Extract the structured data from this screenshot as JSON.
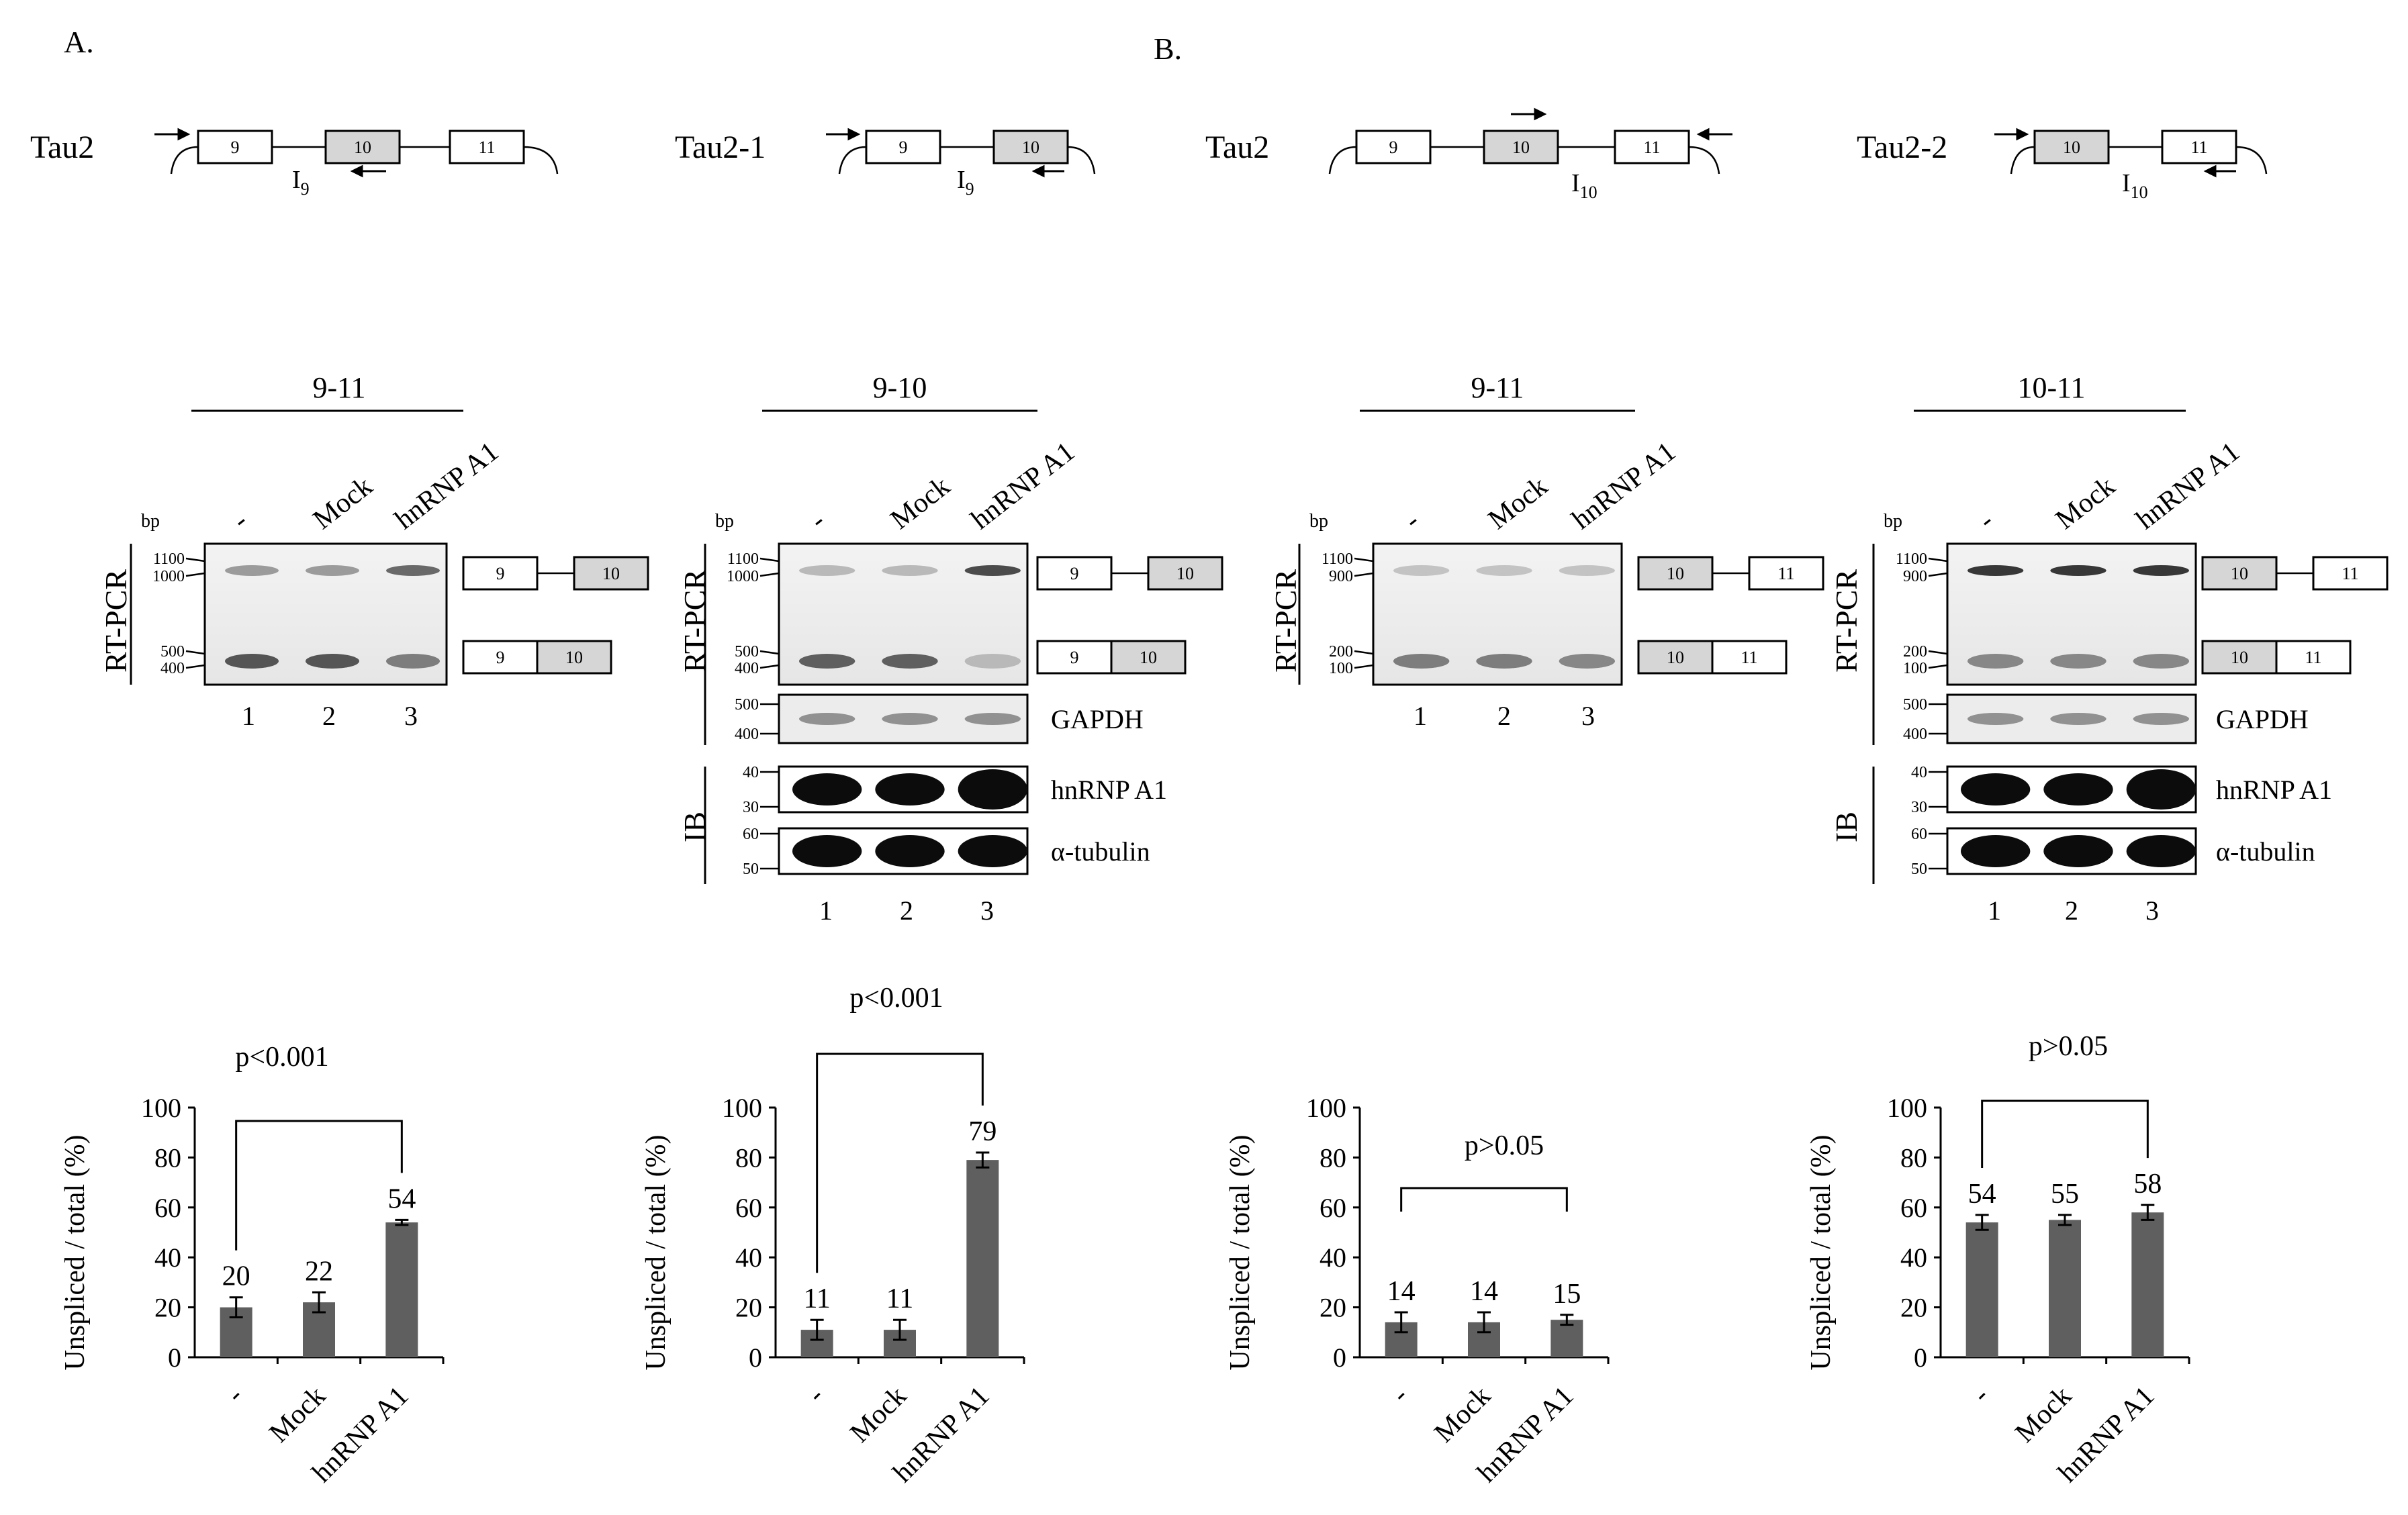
{
  "panels": {
    "A": "A.",
    "B": "B."
  },
  "constructs": [
    {
      "name": "Tau2",
      "exons": [
        "9",
        "10",
        "11"
      ],
      "intron": "I",
      "intron_sub": "9"
    },
    {
      "name": "Tau2-1",
      "exons": [
        "9",
        "10"
      ],
      "intron": "I",
      "intron_sub": "9"
    },
    {
      "name": "Tau2",
      "exons": [
        "9",
        "10",
        "11"
      ],
      "intron": "I",
      "intron_sub": "10"
    },
    {
      "name": "Tau2-2",
      "exons": [
        "10",
        "11"
      ],
      "intron": "I",
      "intron_sub": "10"
    }
  ],
  "blots": [
    {
      "primer_label": "9-11",
      "lanes": [
        "-",
        "Mock",
        "hnRNP A1"
      ],
      "lane_numbers": [
        "1",
        "2",
        "3"
      ],
      "bp": "bp",
      "method": "RT-PCR",
      "markers": [
        "1100",
        "1000",
        "500",
        "400"
      ],
      "product_exons": [
        [
          "9",
          "10"
        ],
        [
          "9",
          "10"
        ]
      ],
      "band_intensity": {
        "unspliced": [
          0.45,
          0.45,
          0.7
        ],
        "spliced": [
          0.8,
          0.8,
          0.6
        ]
      }
    },
    {
      "primer_label": "9-10",
      "lanes": [
        "-",
        "Mock",
        "hnRNP A1"
      ],
      "lane_numbers": [
        "1",
        "2",
        "3"
      ],
      "bp": "bp",
      "method": "RT-PCR",
      "markers": [
        "1100",
        "1000",
        "500",
        "400"
      ],
      "product_exons": [
        [
          "9",
          "10"
        ],
        [
          "9",
          "10"
        ]
      ],
      "gapdh_markers": [
        "500",
        "400"
      ],
      "gapdh_label": "GAPDH",
      "ib_label": "IB",
      "ib_rows": [
        {
          "label": "hnRNP A1",
          "markers": [
            "40",
            "30"
          ]
        },
        {
          "label": "α-tubulin",
          "markers": [
            "60",
            "50"
          ]
        }
      ],
      "band_intensity": {
        "unspliced": [
          0.3,
          0.3,
          0.85
        ],
        "spliced": [
          0.75,
          0.75,
          0.3
        ]
      }
    },
    {
      "primer_label": "9-11",
      "lanes": [
        "-",
        "Mock",
        "hnRNP A1"
      ],
      "lane_numbers": [
        "1",
        "2",
        "3"
      ],
      "bp": "bp",
      "method": "RT-PCR",
      "markers": [
        "1100",
        "900",
        "200",
        "100"
      ],
      "product_exons": [
        [
          "10",
          "11"
        ],
        [
          "10",
          "11"
        ]
      ],
      "band_intensity": {
        "unspliced": [
          0.25,
          0.25,
          0.25
        ],
        "spliced": [
          0.6,
          0.6,
          0.55
        ]
      }
    },
    {
      "primer_label": "10-11",
      "lanes": [
        "-",
        "Mock",
        "hnRNP A1"
      ],
      "lane_numbers": [
        "1",
        "2",
        "3"
      ],
      "bp": "bp",
      "method": "RT-PCR",
      "markers": [
        "1100",
        "900",
        "200",
        "100"
      ],
      "product_exons": [
        [
          "10",
          "11"
        ],
        [
          "10",
          "11"
        ]
      ],
      "gapdh_markers": [
        "500",
        "400"
      ],
      "gapdh_label": "GAPDH",
      "ib_label": "IB",
      "ib_rows": [
        {
          "label": "hnRNP A1",
          "markers": [
            "40",
            "30"
          ]
        },
        {
          "label": "α-tubulin",
          "markers": [
            "60",
            "50"
          ]
        }
      ],
      "band_intensity": {
        "unspliced": [
          0.95,
          0.95,
          0.95
        ],
        "spliced": [
          0.55,
          0.55,
          0.55
        ]
      }
    }
  ],
  "chart_data": [
    {
      "type": "bar",
      "categories": [
        "-",
        "Mock",
        "hnRNP A1"
      ],
      "values": [
        20,
        22,
        54
      ],
      "errors": [
        4,
        4,
        1
      ],
      "ylabel": "Unspliced / total (%)",
      "ylim": [
        0,
        100
      ],
      "yticks": [
        "0",
        "20",
        "40",
        "60",
        "80",
        "100"
      ],
      "significance": "p<0.001",
      "bar_color": "#5f5f5f"
    },
    {
      "type": "bar",
      "categories": [
        "-",
        "Mock",
        "hnRNP A1"
      ],
      "values": [
        11,
        11,
        79
      ],
      "errors": [
        4,
        4,
        3
      ],
      "ylabel": "Unspliced / total (%)",
      "ylim": [
        0,
        100
      ],
      "yticks": [
        "0",
        "20",
        "40",
        "60",
        "80",
        "100"
      ],
      "significance": "p<0.001",
      "bar_color": "#5f5f5f"
    },
    {
      "type": "bar",
      "categories": [
        "-",
        "Mock",
        "hnRNP A1"
      ],
      "values": [
        14,
        14,
        15
      ],
      "errors": [
        4,
        4,
        2
      ],
      "ylabel": "Unspliced  / total (%)",
      "ylim": [
        0,
        100
      ],
      "yticks": [
        "0",
        "20",
        "40",
        "60",
        "80",
        "100"
      ],
      "significance": "p>0.05",
      "bar_color": "#5f5f5f"
    },
    {
      "type": "bar",
      "categories": [
        "-",
        "Mock",
        "hnRNP A1"
      ],
      "values": [
        54,
        55,
        58
      ],
      "errors": [
        3,
        2,
        3
      ],
      "ylabel": "Unspliced / total (%)",
      "ylim": [
        0,
        100
      ],
      "yticks": [
        "0",
        "20",
        "40",
        "60",
        "80",
        "100"
      ],
      "significance": "p>0.05",
      "bar_color": "#5f5f5f"
    }
  ]
}
